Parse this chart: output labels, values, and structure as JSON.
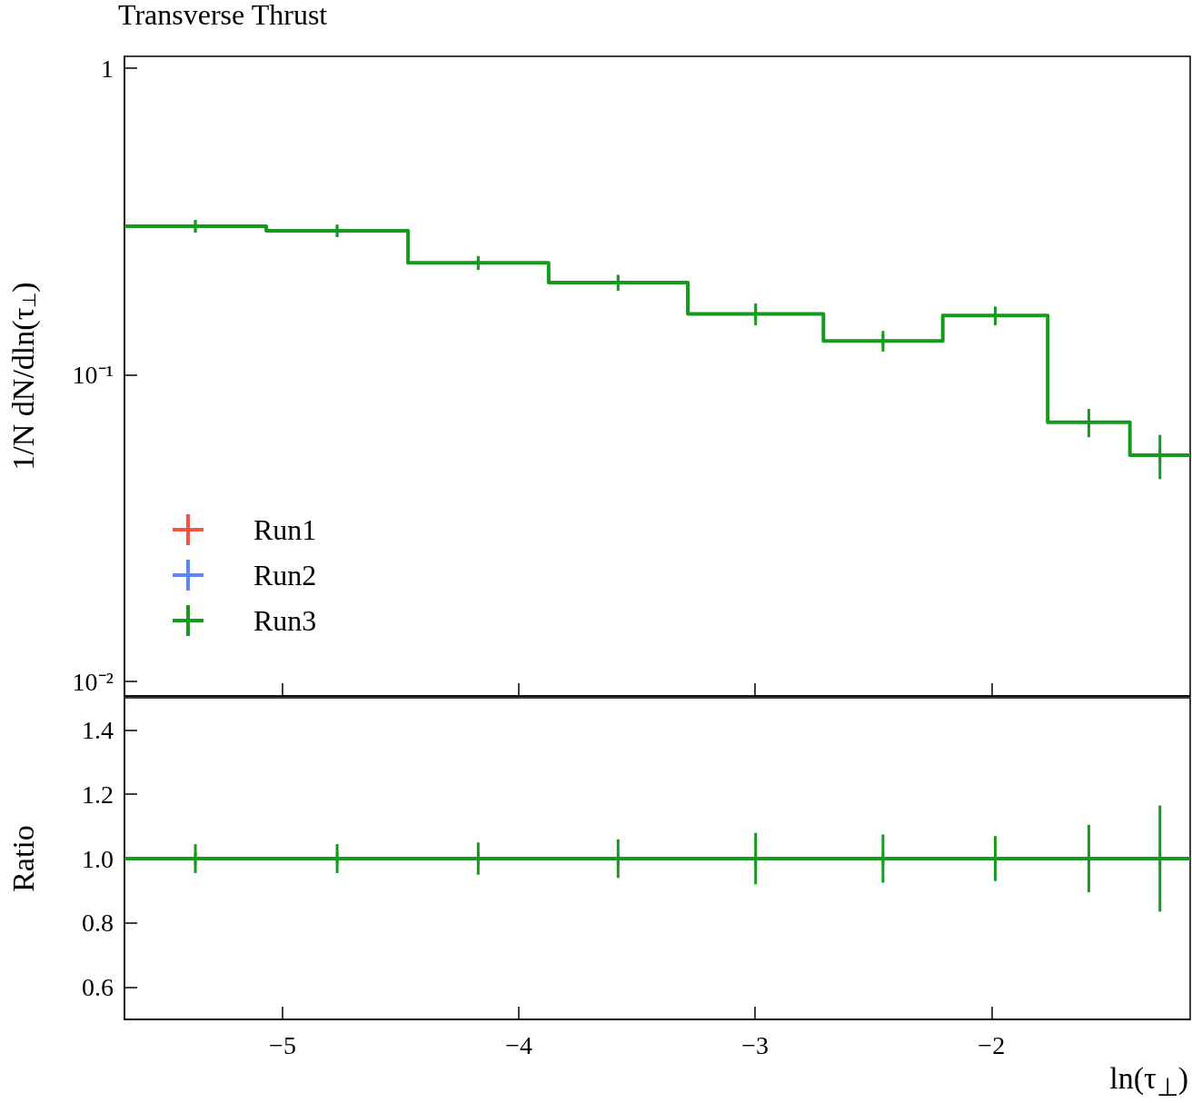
{
  "chart_data": [
    {
      "type": "histogram",
      "title": "Transverse Thrust",
      "ylabel": "1/N dN/dln(τ$_{⊥}$)",
      "log": "y",
      "legend": "bottom left",
      "tick_labels": "y",
      "bins": [
        -5.669,
        -5.069,
        -4.469,
        -3.874,
        -3.285,
        -2.711,
        -2.206,
        -1.762,
        -1.414,
        -1.159
      ],
      "xlim": [
        -5.669,
        -1.159
      ],
      "xticks": [
        {
          "value": -5,
          "label": null
        },
        {
          "value": -4,
          "label": null
        },
        {
          "value": -3,
          "label": null
        },
        {
          "value": -2,
          "label": null
        }
      ],
      "ylim": [
        0.00897,
        1.093
      ],
      "yticks": [
        {
          "value": 0.01,
          "label": "10⁻²"
        },
        {
          "value": 0.1,
          "label": "10⁻¹"
        },
        1
      ],
      "series": [
        {
          "name": "Run1",
          "type": "scatter",
          "marker": "cross",
          "color": "#ee2a1b"
        },
        {
          "name": "Run2",
          "type": "scatter",
          "marker": "cross",
          "color": "#3366ff"
        },
        {
          "name": "Run3",
          "color": "#159a1f",
          "values": [
            0.305,
            0.295,
            0.232,
            0.2,
            0.158,
            0.129,
            0.156,
            0.07,
            0.0547
          ]
        },
        {
          "type": "scatter",
          "marker": "cross",
          "color": "#159a1f",
          "x": [
            -5.369,
            -4.769,
            -4.172,
            -3.58,
            -2.998,
            -2.459,
            -1.984,
            -1.588,
            -1.287
          ],
          "values": [
            0.305,
            0.295,
            0.232,
            0.2,
            0.158,
            0.129,
            0.156,
            0.07,
            0.0547
          ],
          "errors": [
            0.014,
            0.013,
            0.012,
            0.012,
            0.013,
            0.01,
            0.011,
            0.0074,
            0.009
          ]
        }
      ]
    },
    {
      "type": "histogram",
      "xlabel": "ln(τ$_{⊥}$)",
      "ylabel": "Ratio",
      "bins": [
        -5.669,
        -5.069,
        -4.469,
        -3.874,
        -3.285,
        -2.711,
        -2.206,
        -1.762,
        -1.414,
        -1.159
      ],
      "xlim": [
        -5.669,
        -1.159
      ],
      "xticks": [
        {
          "value": -5,
          "label": "−5"
        },
        {
          "value": -4,
          "label": "−4"
        },
        {
          "value": -3,
          "label": "−3"
        },
        {
          "value": -2,
          "label": "−2"
        }
      ],
      "ylim": [
        0.5,
        1.5
      ],
      "yticks": [
        0.6,
        0.8,
        {
          "value": 1.0,
          "label": "1.0"
        },
        1.2,
        1.4
      ],
      "series": [
        {
          "color": "#159a1f",
          "values": [
            1.0,
            1.0,
            1.0,
            1.0,
            1.0,
            1.0,
            1.0,
            1.0,
            1.0
          ]
        },
        {
          "type": "scatter",
          "marker": "cross",
          "color": "#159a1f",
          "x": [
            -5.369,
            -4.769,
            -4.172,
            -3.58,
            -2.998,
            -2.459,
            -1.984,
            -1.588,
            -1.287
          ],
          "values": [
            1.0,
            1.0,
            1.0,
            1.0,
            1.0,
            1.0,
            1.0,
            1.0,
            1.0
          ],
          "errors": [
            0.045,
            0.045,
            0.05,
            0.06,
            0.08,
            0.075,
            0.07,
            0.105,
            0.165
          ]
        }
      ]
    }
  ]
}
